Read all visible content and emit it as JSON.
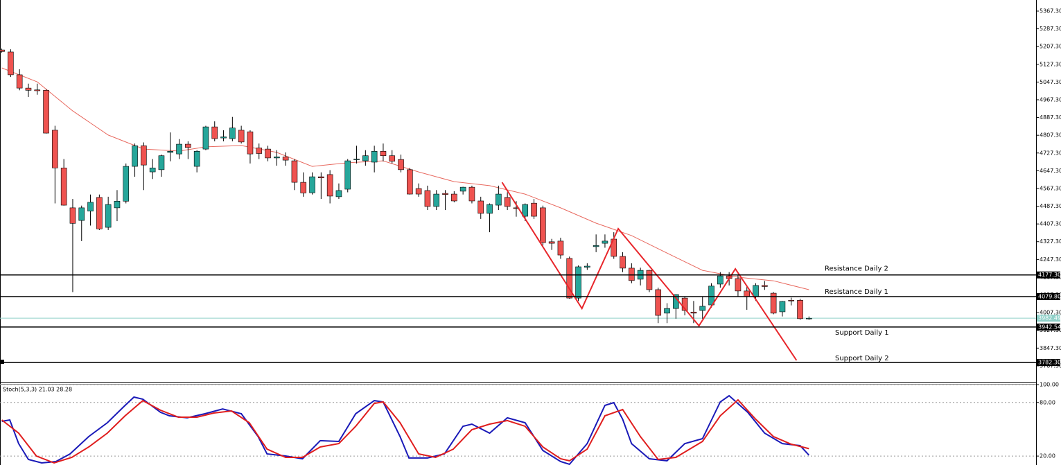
{
  "chart_data": [
    {
      "type": "candlestick",
      "xlim": [
        -0.2,
        116.6
      ],
      "ylim": [
        3698.3,
        5417.3
      ],
      "yticks": [
        {
          "value": 5367.3,
          "label": "5367.30"
        },
        {
          "value": 5287.3,
          "label": "5287.30"
        },
        {
          "value": 5207.3,
          "label": "5207.30"
        },
        {
          "value": 5127.3,
          "label": "5127.30"
        },
        {
          "value": 5047.3,
          "label": "5047.30"
        },
        {
          "value": 4967.3,
          "label": "4967.30"
        },
        {
          "value": 4887.3,
          "label": "4887.30"
        },
        {
          "value": 4807.3,
          "label": "4807.30"
        },
        {
          "value": 4727.3,
          "label": "4727.30"
        },
        {
          "value": 4647.3,
          "label": "4647.30"
        },
        {
          "value": 4567.3,
          "label": "4567.30"
        },
        {
          "value": 4487.3,
          "label": "4487.30"
        },
        {
          "value": 4407.3,
          "label": "4407.30"
        },
        {
          "value": 4327.3,
          "label": "4327.30"
        },
        {
          "value": 4247.3,
          "label": "4247.30"
        },
        {
          "value": 4167.3,
          "label": "4167.30"
        },
        {
          "value": 4087.3,
          "label": "4087.30"
        },
        {
          "value": 4007.3,
          "label": "4007.30"
        },
        {
          "value": 3927.3,
          "label": "3927.30"
        },
        {
          "value": 3847.3,
          "label": "3847.30"
        },
        {
          "value": 3767.3,
          "label": "3767.30"
        }
      ],
      "up_color": "#26a69a",
      "down_color": "#ef5350",
      "candles": [
        [
          5192,
          5198,
          5180,
          5185
        ],
        [
          5183,
          5195,
          5070,
          5080
        ],
        [
          5080,
          5105,
          5010,
          5020
        ],
        [
          5020,
          5040,
          4980,
          5010
        ],
        [
          5012,
          5040,
          4990,
          5008
        ],
        [
          5010,
          5015,
          4815,
          4817
        ],
        [
          4830,
          4850,
          4500,
          4660
        ],
        [
          4660,
          4700,
          4490,
          4492
        ],
        [
          4480,
          4520,
          4100,
          4410
        ],
        [
          4423,
          4490,
          4330,
          4480
        ],
        [
          4465,
          4540,
          4400,
          4505
        ],
        [
          4527,
          4540,
          4380,
          4385
        ],
        [
          4392,
          4530,
          4380,
          4495
        ],
        [
          4480,
          4560,
          4420,
          4510
        ],
        [
          4510,
          4680,
          4500,
          4667
        ],
        [
          4667,
          4770,
          4620,
          4760
        ],
        [
          4760,
          4775,
          4560,
          4673
        ],
        [
          4642,
          4700,
          4610,
          4660
        ],
        [
          4652,
          4720,
          4620,
          4715
        ],
        [
          4730,
          4820,
          4690,
          4735
        ],
        [
          4723,
          4790,
          4700,
          4767
        ],
        [
          4767,
          4780,
          4700,
          4752
        ],
        [
          4667,
          4740,
          4640,
          4735
        ],
        [
          4745,
          4850,
          4740,
          4845
        ],
        [
          4845,
          4870,
          4780,
          4792
        ],
        [
          4795,
          4830,
          4780,
          4800
        ],
        [
          4792,
          4890,
          4780,
          4840
        ],
        [
          4830,
          4850,
          4770,
          4777
        ],
        [
          4823,
          4830,
          4680,
          4723
        ],
        [
          4750,
          4770,
          4700,
          4725
        ],
        [
          4745,
          4760,
          4690,
          4705
        ],
        [
          4705,
          4740,
          4670,
          4710
        ],
        [
          4710,
          4730,
          4670,
          4695
        ],
        [
          4692,
          4700,
          4560,
          4595
        ],
        [
          4595,
          4640,
          4530,
          4547
        ],
        [
          4548,
          4640,
          4540,
          4620
        ],
        [
          4620,
          4640,
          4520,
          4615
        ],
        [
          4630,
          4650,
          4500,
          4533
        ],
        [
          4530,
          4590,
          4520,
          4558
        ],
        [
          4564,
          4700,
          4550,
          4692
        ],
        [
          4698,
          4760,
          4680,
          4700
        ],
        [
          4692,
          4740,
          4670,
          4715
        ],
        [
          4686,
          4760,
          4640,
          4735
        ],
        [
          4735,
          4770,
          4690,
          4715
        ],
        [
          4715,
          4740,
          4680,
          4690
        ],
        [
          4698,
          4720,
          4640,
          4652
        ],
        [
          4652,
          4660,
          4540,
          4542
        ],
        [
          4567,
          4590,
          4530,
          4542
        ],
        [
          4558,
          4580,
          4470,
          4486
        ],
        [
          4486,
          4560,
          4470,
          4542
        ],
        [
          4545,
          4560,
          4470,
          4540
        ],
        [
          4542,
          4555,
          4505,
          4511
        ],
        [
          4555,
          4575,
          4540,
          4573
        ],
        [
          4573,
          4580,
          4500,
          4511
        ],
        [
          4511,
          4530,
          4430,
          4455
        ],
        [
          4455,
          4500,
          4370,
          4495
        ],
        [
          4492,
          4580,
          4470,
          4542
        ],
        [
          4527,
          4550,
          4470,
          4486
        ],
        [
          4480,
          4510,
          4440,
          4478
        ],
        [
          4442,
          4500,
          4420,
          4495
        ],
        [
          4501,
          4520,
          4430,
          4442
        ],
        [
          4480,
          4490,
          4310,
          4323
        ],
        [
          4327,
          4340,
          4290,
          4320
        ],
        [
          4330,
          4345,
          4250,
          4267
        ],
        [
          4252,
          4260,
          4070,
          4073
        ],
        [
          4073,
          4220,
          4060,
          4214
        ],
        [
          4212,
          4230,
          4200,
          4217
        ],
        [
          4305,
          4360,
          4280,
          4310
        ],
        [
          4320,
          4360,
          4300,
          4330
        ],
        [
          4339,
          4370,
          4250,
          4261
        ],
        [
          4261,
          4280,
          4190,
          4208
        ],
        [
          4208,
          4230,
          4140,
          4152
        ],
        [
          4158,
          4210,
          4130,
          4198
        ],
        [
          4198,
          4200,
          4100,
          4111
        ],
        [
          4111,
          4120,
          3960,
          3995
        ],
        [
          4005,
          4050,
          3960,
          4026
        ],
        [
          4026,
          4090,
          3980,
          4089
        ],
        [
          4073,
          4080,
          3995,
          4017
        ],
        [
          4010,
          4060,
          3960,
          4005
        ],
        [
          4017,
          4080,
          3980,
          4036
        ],
        [
          4042,
          4140,
          4030,
          4127
        ],
        [
          4136,
          4190,
          4120,
          4173
        ],
        [
          4173,
          4190,
          4130,
          4161
        ],
        [
          4161,
          4175,
          4080,
          4105
        ],
        [
          4105,
          4130,
          4020,
          4080
        ],
        [
          4080,
          4140,
          4060,
          4130
        ],
        [
          4130,
          4150,
          4110,
          4125
        ],
        [
          4095,
          4100,
          4000,
          4005
        ],
        [
          4011,
          4060,
          3990,
          4058
        ],
        [
          4063,
          4075,
          4040,
          4060
        ],
        [
          4063,
          4070,
          3975,
          3980
        ],
        [
          3982,
          3990,
          3975,
          3982
        ]
      ],
      "ma": {
        "color": "#e8695f",
        "x": [
          0,
          4,
          8,
          12,
          16,
          20,
          23,
          27,
          31,
          35,
          39,
          43,
          47,
          51,
          55,
          59,
          63,
          67,
          71,
          75,
          79,
          83,
          87,
          91
        ],
        "values": [
          5111,
          5048,
          4917,
          4808,
          4745,
          4736,
          4755,
          4761,
          4730,
          4667,
          4683,
          4692,
          4642,
          4598,
          4580,
          4542,
          4480,
          4411,
          4355,
          4276,
          4198,
          4167,
          4151,
          4111
        ]
      },
      "zigzag": {
        "color": "#e8262b",
        "x": [
          56.4,
          65.4,
          69.5,
          78.6,
          82.7,
          89.6
        ],
        "values": [
          4595,
          4026,
          4386,
          3948,
          4205,
          3792
        ]
      },
      "levels": {
        "names": [
          "Resistance Daily 2",
          "Resistance Daily 1",
          "Support Daily 1",
          "Support Daily 2"
        ],
        "values": [
          4177.3,
          4079.8,
          3942.54,
          3782.3
        ],
        "value_labels": [
          "4177.30",
          "4079.80",
          "3942.54",
          "3782.30"
        ]
      },
      "last_price": 3982.49,
      "last_price_color": "#8fd0c8"
    },
    {
      "type": "line",
      "title": "Stoch(5,3,3) 21.03 28.28",
      "xlim": [
        -0.2,
        116.6
      ],
      "ylim": [
        10,
        100
      ],
      "yticks": [
        {
          "value": 100,
          "label": "100.00"
        },
        {
          "value": 80,
          "label": "80.00"
        },
        {
          "value": 20,
          "label": "20.00"
        }
      ],
      "series": [
        {
          "color": "#1a1ab8",
          "x": [
            0,
            0.9,
            1.9,
            3,
            4.5,
            6.1,
            7.7,
            9.8,
            11.9,
            13.9,
            14.9,
            15.9,
            17.9,
            18.9,
            20.9,
            22.9,
            24.9,
            27,
            28.9,
            29.9,
            32,
            33.9,
            35.9,
            38,
            39.9,
            42,
            43,
            44.9,
            45.9,
            48,
            49.9,
            52,
            53,
            55,
            57,
            59,
            61,
            63,
            64,
            66,
            68,
            69,
            70,
            71,
            73,
            75,
            77,
            79,
            81,
            82,
            84.1,
            86,
            88,
            90,
            91
          ],
          "values": [
            58.9,
            60.4,
            34.0,
            16.2,
            12.3,
            13.9,
            22.4,
            41.8,
            57.3,
            76.7,
            86.0,
            83.7,
            69.0,
            65.1,
            62.8,
            67.4,
            72.8,
            67.4,
            41.8,
            22.4,
            20.1,
            17.0,
            37.2,
            36.4,
            67.4,
            82.1,
            80.6,
            41.8,
            17.8,
            17.8,
            22.4,
            53.4,
            55.8,
            45.7,
            62.8,
            57.3,
            26.3,
            13.9,
            10.8,
            34.0,
            76.7,
            79.8,
            61.2,
            34.0,
            17.0,
            14.7,
            34.0,
            39.5,
            80.6,
            87.6,
            69.0,
            45.7,
            34.0,
            31.7,
            21.0
          ]
        },
        {
          "color": "#e01e1e",
          "x": [
            0,
            1.9,
            3.9,
            5.9,
            7.9,
            9.8,
            11.9,
            13.9,
            15.9,
            17.9,
            19.9,
            22,
            23.9,
            25.9,
            27.9,
            29.9,
            32,
            33.9,
            35.9,
            38,
            39.9,
            42,
            43,
            44.9,
            47,
            48.9,
            50.9,
            53,
            55,
            57,
            59,
            61,
            63,
            64,
            66,
            68,
            70,
            72,
            74,
            76,
            79,
            81,
            83,
            85,
            87,
            89,
            91
          ],
          "values": [
            60.4,
            45.7,
            20.1,
            12.3,
            18.5,
            30.2,
            45.7,
            65.1,
            82.1,
            71.3,
            63.5,
            63.5,
            68.2,
            70.5,
            57.3,
            27.8,
            18.5,
            18.5,
            30.2,
            34.0,
            53.4,
            79.0,
            80.6,
            57.3,
            22.4,
            18.5,
            27.8,
            49.6,
            55.8,
            59.7,
            53.4,
            30.2,
            17.0,
            14.7,
            27.8,
            65.1,
            72.1,
            41.8,
            16.2,
            18.5,
            36.4,
            65.1,
            82.9,
            61.2,
            41.8,
            33.3,
            28.3
          ]
        }
      ]
    }
  ]
}
